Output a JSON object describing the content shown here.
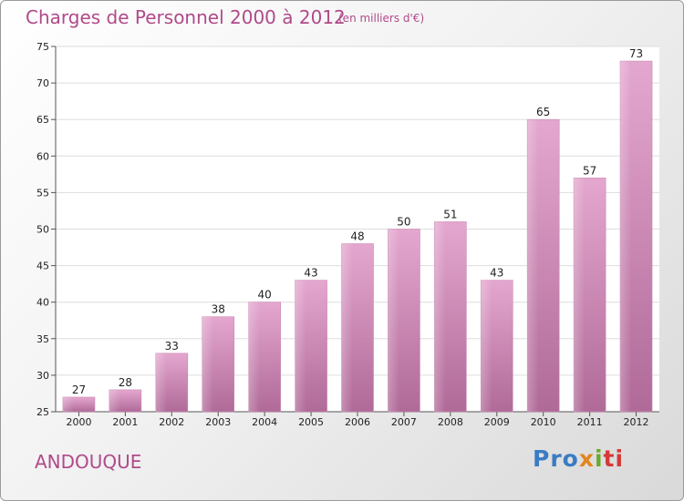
{
  "chart_data": {
    "type": "bar",
    "title": "Charges de Personnel 2000 à 2012",
    "subtitle": "(en milliers d'€)",
    "categories": [
      "2000",
      "2001",
      "2002",
      "2003",
      "2004",
      "2005",
      "2006",
      "2007",
      "2008",
      "2009",
      "2010",
      "2011",
      "2012"
    ],
    "values": [
      27,
      28,
      33,
      38,
      40,
      43,
      48,
      50,
      51,
      43,
      65,
      57,
      73
    ],
    "ylim": [
      25,
      75
    ],
    "yticks": [
      25,
      30,
      35,
      40,
      45,
      50,
      55,
      60,
      65,
      70,
      75
    ],
    "grid": true,
    "bar_color": "#d387b8",
    "text_color": "#b04a8a"
  },
  "commune": "ANDOUQUE",
  "logo": {
    "p1": "Pro",
    "p2": "x",
    "p3": "i",
    "p4": "ti"
  }
}
